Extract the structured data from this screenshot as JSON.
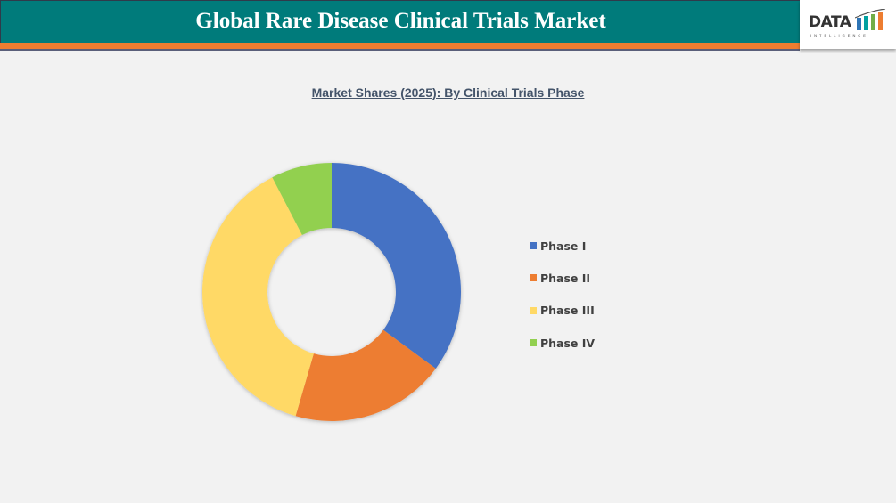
{
  "header": {
    "title": "Global Rare Disease Clinical Trials Market"
  },
  "logo": {
    "text": "DATA",
    "subtext": "INTELLIGENCE"
  },
  "colors": {
    "header_bg": "#007b7b",
    "accent_bar": "#ed7d31"
  },
  "chart_data": {
    "type": "pie",
    "variant": "donut",
    "title": "Market Shares (2025): By Clinical Trials Phase",
    "categories": [
      "Phase I",
      "Phase II",
      "Phase III",
      "Phase IV"
    ],
    "values": [
      35.1,
      19.4,
      37.9,
      7.6
    ],
    "unit": "%",
    "colors": [
      "#4472c4",
      "#ed7d31",
      "#ffd966",
      "#92d050"
    ],
    "legend_position": "right"
  },
  "legend": [
    {
      "label": "Phase I",
      "color": "#4472c4"
    },
    {
      "label": "Phase II",
      "color": "#ed7d31"
    },
    {
      "label": "Phase III",
      "color": "#ffd966"
    },
    {
      "label": "Phase IV",
      "color": "#92d050"
    }
  ]
}
